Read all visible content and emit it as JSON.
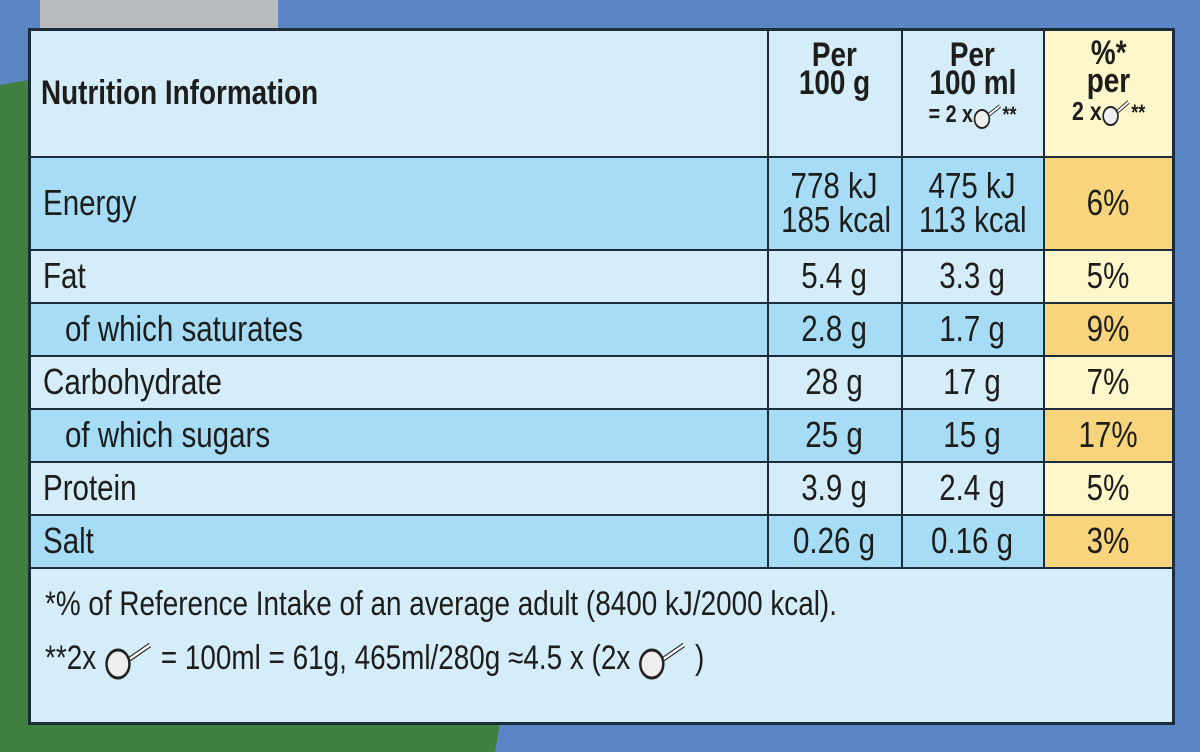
{
  "header": {
    "title": "Nutrition Information",
    "col1": [
      "Per",
      "100 g"
    ],
    "col2": [
      "Per",
      "100 ml",
      "= 2 x",
      "**"
    ],
    "col3": [
      "%*",
      "per",
      "2 x",
      "**"
    ]
  },
  "rows": [
    {
      "label": "Energy",
      "per_100g": [
        "778 kJ",
        "185 kcal"
      ],
      "per_100ml": [
        "475 kJ",
        "113 kcal"
      ],
      "ri": "6%"
    },
    {
      "label": "Fat",
      "per_100g": "5.4 g",
      "per_100ml": "3.3 g",
      "ri": "5%"
    },
    {
      "label": "of which saturates",
      "per_100g": "2.8 g",
      "per_100ml": "1.7 g",
      "ri": "9%"
    },
    {
      "label": "Carbohydrate",
      "per_100g": "28 g",
      "per_100ml": "17 g",
      "ri": "7%"
    },
    {
      "label": "of which sugars",
      "per_100g": "25 g",
      "per_100ml": "15 g",
      "ri": "17%"
    },
    {
      "label": "Protein",
      "per_100g": "3.9 g",
      "per_100ml": "2.4 g",
      "ri": "5%"
    },
    {
      "label": "Salt",
      "per_100g": "0.26 g",
      "per_100ml": "0.16 g",
      "ri": "3%"
    }
  ],
  "footnotes": [
    "*% of Reference Intake of an average adult (8400 kJ/2000 kcal).",
    [
      "**2x",
      "= 100ml = 61g, 465ml/280g ≈4.5 x (2x",
      ")"
    ]
  ]
}
